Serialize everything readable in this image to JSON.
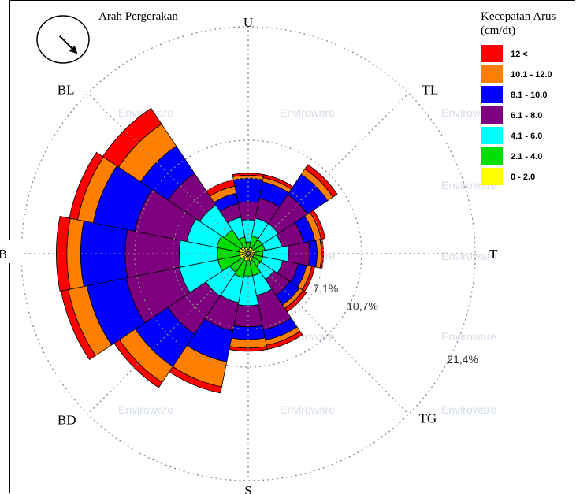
{
  "chart_data": {
    "type": "wind-rose",
    "title": "Arah Pergerakan",
    "directions": [
      "U",
      "TL",
      "T",
      "TG",
      "S",
      "BD",
      "B",
      "BL"
    ],
    "ring_labels": [
      "7,1%",
      "10,7%",
      "21,4%"
    ],
    "rmax_percent": 21.4,
    "legend_title_lines": [
      "Kecepatan Arus",
      "(cm/dt)"
    ],
    "bins": [
      {
        "label": "12 <",
        "color": "#ff0000"
      },
      {
        "label": "10.1 - 12.0",
        "color": "#ff8000"
      },
      {
        "label": "8.1 - 10.0",
        "color": "#0000ff"
      },
      {
        "label": "6.1 - 8.0",
        "color": "#7f007f"
      },
      {
        "label": "4.1 - 6.0",
        "color": "#00ffff"
      },
      {
        "label": "2.1 - 4.0",
        "color": "#00dd00"
      },
      {
        "label": "0 - 2.0",
        "color": "#ffff00"
      }
    ],
    "sectors": [
      {
        "center_deg": 0,
        "cumulative_percent": [
          0.4,
          1.1,
          3.2,
          4.9,
          7.1,
          7.4,
          7.6
        ]
      },
      {
        "center_deg": 22.5,
        "cumulative_percent": [
          0.6,
          1.7,
          3.4,
          5.3,
          6.9,
          7.3,
          7.6
        ]
      },
      {
        "center_deg": 45,
        "cumulative_percent": [
          0.6,
          1.6,
          3.4,
          6.7,
          9.0,
          9.6,
          10.1
        ]
      },
      {
        "center_deg": 67.5,
        "cumulative_percent": [
          0.7,
          1.6,
          3.2,
          5.3,
          6.4,
          7.0,
          7.4
        ]
      },
      {
        "center_deg": 90,
        "cumulative_percent": [
          0.6,
          1.4,
          3.8,
          5.8,
          6.5,
          6.9,
          7.1
        ]
      },
      {
        "center_deg": 112.5,
        "cumulative_percent": [
          0.5,
          1.4,
          3.3,
          4.8,
          5.6,
          6.1,
          6.4
        ]
      },
      {
        "center_deg": 135,
        "cumulative_percent": [
          0.5,
          1.4,
          2.9,
          4.7,
          5.8,
          6.2,
          6.6
        ]
      },
      {
        "center_deg": 157.5,
        "cumulative_percent": [
          0.7,
          2.1,
          4.0,
          7.3,
          8.3,
          8.8,
          9.2
        ]
      },
      {
        "center_deg": 180,
        "cumulative_percent": [
          0.6,
          2.1,
          4.9,
          6.9,
          8.1,
          8.9,
          9.2
        ]
      },
      {
        "center_deg": 202.5,
        "cumulative_percent": [
          0.7,
          2.3,
          4.7,
          7.4,
          10.4,
          12.8,
          13.4
        ]
      },
      {
        "center_deg": 225,
        "cumulative_percent": [
          0.5,
          2.1,
          4.8,
          9.1,
          12.8,
          14.6,
          15.2
        ]
      },
      {
        "center_deg": 247.5,
        "cumulative_percent": [
          0.8,
          2.9,
          6.6,
          11.7,
          15.5,
          17.3,
          18.0
        ]
      },
      {
        "center_deg": 270,
        "cumulative_percent": [
          0.8,
          2.9,
          6.5,
          11.6,
          15.8,
          17.1,
          18.1
        ]
      },
      {
        "center_deg": 292.5,
        "cumulative_percent": [
          0.9,
          3.0,
          5.9,
          10.9,
          14.9,
          16.4,
          17.2
        ]
      },
      {
        "center_deg": 315,
        "cumulative_percent": [
          0.8,
          2.7,
          5.5,
          9.1,
          12.2,
          14.7,
          16.5
        ]
      },
      {
        "center_deg": 337.5,
        "cumulative_percent": [
          0.6,
          1.6,
          3.5,
          4.8,
          5.8,
          6.5,
          7.1
        ]
      }
    ],
    "movement_arrow_deg": 135,
    "grid": true,
    "legend_position": "top-right"
  },
  "watermark": {
    "text": "Enviroware"
  }
}
